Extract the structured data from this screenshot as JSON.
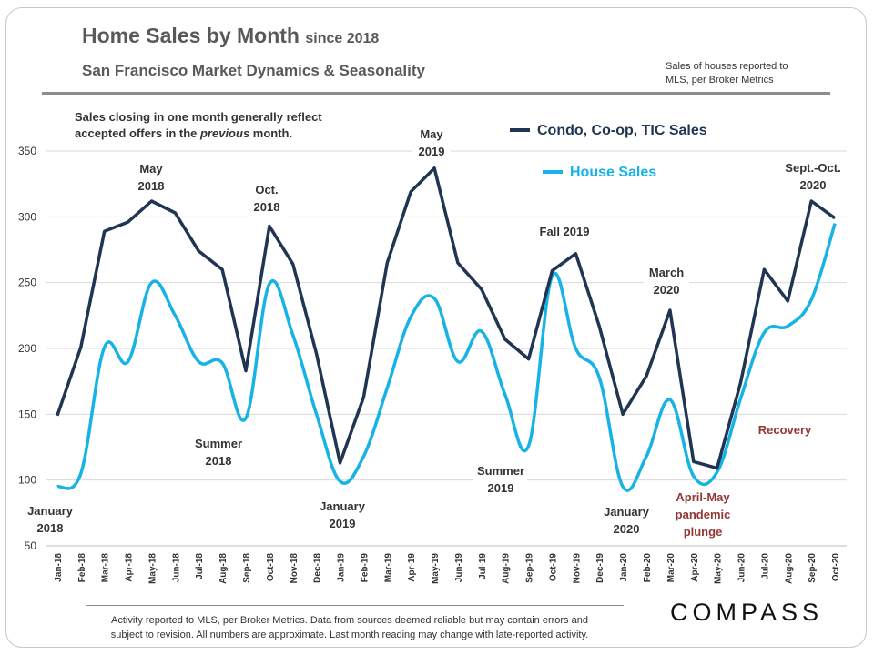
{
  "header": {
    "title": "Home Sales by Month",
    "title_suffix": "since 2018",
    "subtitle": "San Francisco Market Dynamics & Seasonality",
    "source_line1": "Sales of houses reported to",
    "source_line2": "MLS, per Broker Metrics"
  },
  "note": {
    "line1": "Sales closing in one month generally reflect",
    "line2_a": "accepted offers in the ",
    "line2_em": "previous",
    "line2_b": " month."
  },
  "footer": {
    "line1": "Activity reported to MLS, per Broker Metrics. Data from sources deemed reliable but may contain errors and",
    "line2": "subject to revision. All numbers are approximate. Last month reading may change with late-reported activity."
  },
  "logo": "COMPASS",
  "colors": {
    "condo": "#1f3552",
    "house": "#17b3e6",
    "dark_red": "#943634",
    "grid": "#d9d9d9",
    "text": "#333333"
  },
  "chart_data": {
    "type": "line",
    "x": [
      "Jan-18",
      "Feb-18",
      "Mar-18",
      "Apr-18",
      "May-18",
      "Jun-18",
      "Jul-18",
      "Aug-18",
      "Sep-18",
      "Oct-18",
      "Nov-18",
      "Dec-18",
      "Jan-19",
      "Feb-19",
      "Mar-19",
      "Apr-19",
      "May-19",
      "Jun-19",
      "Jul-19",
      "Aug-19",
      "Sep-19",
      "Oct-19",
      "Nov-19",
      "Dec-19",
      "Jan-20",
      "Feb-20",
      "Mar-20",
      "Apr-20",
      "May-20",
      "Jun-20",
      "Jul-20",
      "Aug-20",
      "Sep-20",
      "Oct-20"
    ],
    "ylim": [
      50,
      350
    ],
    "yticks": [
      50,
      100,
      150,
      200,
      250,
      300,
      350
    ],
    "grid": true,
    "series": [
      {
        "name": "Condo, Co-op, TIC Sales",
        "color": "#1f3552",
        "values": [
          149,
          201,
          289,
          296,
          312,
          303,
          274,
          260,
          183,
          293,
          264,
          196,
          113,
          163,
          265,
          319,
          337,
          265,
          245,
          207,
          192,
          259,
          272,
          217,
          150,
          179,
          229,
          114,
          109,
          174,
          260,
          236,
          312,
          299
        ]
      },
      {
        "name": "House Sales",
        "color": "#17b3e6",
        "values": [
          95,
          105,
          201,
          190,
          250,
          225,
          190,
          189,
          147,
          249,
          210,
          150,
          99,
          118,
          170,
          224,
          238,
          190,
          213,
          165,
          126,
          255,
          200,
          178,
          95,
          118,
          161,
          103,
          106,
          162,
          212,
          217,
          237,
          295
        ]
      }
    ],
    "legend": [
      {
        "label": "Condo, Co-op, TIC Sales",
        "color": "#1f3552"
      },
      {
        "label": "House Sales",
        "color": "#17b3e6"
      }
    ],
    "annotations": [
      {
        "id": "jan18",
        "lines": [
          "January",
          "2018"
        ],
        "color": "#333333"
      },
      {
        "id": "may18",
        "lines": [
          "May",
          "2018"
        ],
        "color": "#333333"
      },
      {
        "id": "oct18",
        "lines": [
          "Oct.",
          "2018"
        ],
        "color": "#333333"
      },
      {
        "id": "sum18",
        "lines": [
          "Summer",
          "2018"
        ],
        "color": "#333333"
      },
      {
        "id": "jan19",
        "lines": [
          "January",
          "2019"
        ],
        "color": "#333333"
      },
      {
        "id": "may19",
        "lines": [
          "May",
          "2019"
        ],
        "color": "#333333"
      },
      {
        "id": "sum19",
        "lines": [
          "Summer",
          "2019"
        ],
        "color": "#333333"
      },
      {
        "id": "fall19",
        "lines": [
          "Fall 2019"
        ],
        "color": "#333333"
      },
      {
        "id": "jan20",
        "lines": [
          "January",
          "2020"
        ],
        "color": "#333333"
      },
      {
        "id": "mar20",
        "lines": [
          "March",
          "2020"
        ],
        "color": "#333333"
      },
      {
        "id": "plunge",
        "lines": [
          "April-May",
          "pandemic",
          "plunge"
        ],
        "color": "#943634"
      },
      {
        "id": "recovery",
        "lines": [
          "Recovery"
        ],
        "color": "#943634"
      },
      {
        "id": "sepoct20",
        "lines": [
          "Sept.-Oct.",
          "2020"
        ],
        "color": "#333333"
      }
    ]
  }
}
